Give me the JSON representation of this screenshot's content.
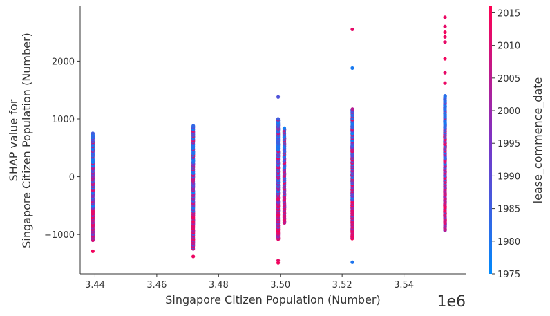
{
  "chart_data": {
    "type": "scatter",
    "title": "",
    "xlabel": "Singapore Citizen Population (Number)",
    "ylabel_line1": "SHAP value for",
    "ylabel_line2": "Singapore Citizen Population (Number)",
    "x_offset_label": "1e6",
    "xlim": [
      3.4352,
      3.56
    ],
    "ylim": [
      -1680,
      2950
    ],
    "x_ticks": [
      3.44,
      3.46,
      3.48,
      3.5,
      3.52,
      3.54
    ],
    "x_tick_labels": [
      "3.44",
      "3.46",
      "3.48",
      "3.50",
      "3.52",
      "3.54"
    ],
    "y_ticks": [
      -1000,
      0,
      1000,
      2000
    ],
    "y_tick_labels": [
      "−1000",
      "0",
      "1000",
      "2000"
    ],
    "colorbar": {
      "label": "lease_commence_date",
      "range": [
        1975,
        2016
      ],
      "ticks": [
        1975,
        1980,
        1985,
        1990,
        1995,
        2000,
        2005,
        2010,
        2015
      ],
      "tick_labels": [
        "1975",
        "1980",
        "1985",
        "1990",
        "1995",
        "2000",
        "2005",
        "2010",
        "2015"
      ],
      "low_color": "#008afb",
      "mid_color": "#7d33c5",
      "high_color": "#ff0052"
    },
    "clusters": [
      {
        "x": 3.4393,
        "y_min": -1100,
        "y_max": 750,
        "outliers": [
          {
            "y": -1290,
            "year": 2014
          }
        ]
      },
      {
        "x": 3.4718,
        "y_min": -1250,
        "y_max": 880,
        "outliers": [
          {
            "y": -1380,
            "year": 2013
          }
        ]
      },
      {
        "x": 3.4993,
        "y_min": -1080,
        "y_max": 1000,
        "outliers": [
          {
            "y": 1380,
            "year": 1988
          },
          {
            "y": -1450,
            "year": 2012
          },
          {
            "y": -1490,
            "year": 2014
          }
        ]
      },
      {
        "x": 3.5013,
        "y_min": -800,
        "y_max": 840,
        "outliers": []
      },
      {
        "x": 3.5233,
        "y_min": -1070,
        "y_max": 1170,
        "outliers": [
          {
            "y": 2550,
            "year": 2012
          },
          {
            "y": 1880,
            "year": 1979
          },
          {
            "y": -1480,
            "year": 1980
          }
        ]
      },
      {
        "x": 3.5533,
        "y_min": -930,
        "y_max": 1400,
        "outliers": [
          {
            "y": 2760,
            "year": 2013
          },
          {
            "y": 2600,
            "year": 2012
          },
          {
            "y": 2500,
            "year": 2014
          },
          {
            "y": 2420,
            "year": 2013
          },
          {
            "y": 2330,
            "year": 2012
          },
          {
            "y": 2040,
            "year": 2014
          },
          {
            "y": 1800,
            "year": 2012
          },
          {
            "y": 1620,
            "year": 2013
          }
        ]
      }
    ]
  }
}
